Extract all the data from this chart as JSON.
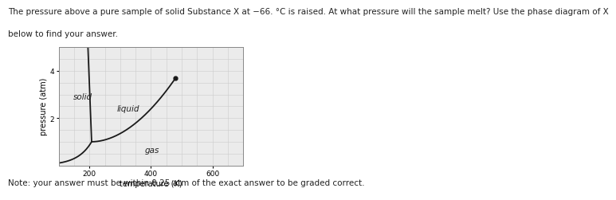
{
  "title_line1": "The pressure above a pure sample of solid Substance X at −66. °C is raised. At what pressure will the sample melt? Use the phase diagram of X",
  "title_line2": "below to find your answer.",
  "note_text": "Note: your answer must be within 0.25 atm of the exact answer to be graded correct.",
  "xlabel": "temperature (K)",
  "ylabel": "pressure (atm)",
  "xlim": [
    100,
    700
  ],
  "ylim": [
    0,
    5
  ],
  "xticks": [
    200,
    400,
    600
  ],
  "yticks": [
    2,
    4
  ],
  "bg_color": "#ebebeb",
  "line_color": "#1a1a1a",
  "label_solid": "solid",
  "label_liquid": "liquid",
  "label_gas": "gas",
  "triple_point": [
    207,
    1.0
  ],
  "critical_point": [
    480,
    3.7
  ],
  "grid_color": "#cccccc",
  "text_color": "#222222",
  "font_size_title": 7.5,
  "font_size_labels": 7,
  "font_size_phase": 7.5,
  "font_size_tick": 6.5
}
